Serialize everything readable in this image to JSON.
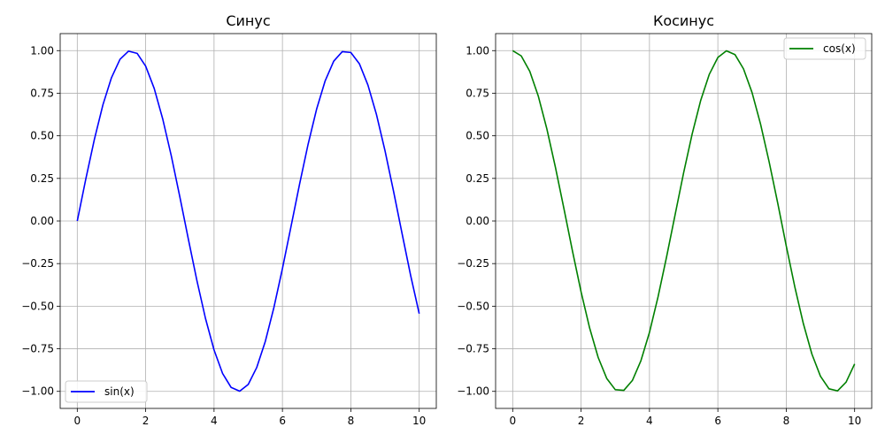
{
  "chart_data": [
    {
      "type": "line",
      "title": "Синус",
      "xlabel": "",
      "ylabel": "",
      "xlim": [
        -0.5,
        10.5
      ],
      "ylim": [
        -1.1,
        1.1
      ],
      "grid": true,
      "legend_position": "bottom-left",
      "xticks": [
        "0",
        "2",
        "4",
        "6",
        "8",
        "10"
      ],
      "yticks": [
        "1.00",
        "0.75",
        "0.50",
        "0.25",
        "0.00",
        "−0.25",
        "−0.50",
        "−0.75",
        "−1.00"
      ],
      "series": [
        {
          "name": "sin(x)",
          "color": "#0000ff",
          "x": [
            0,
            0.25,
            0.5,
            0.75,
            1,
            1.25,
            1.5,
            1.75,
            2,
            2.25,
            2.5,
            2.75,
            3,
            3.25,
            3.5,
            3.75,
            4,
            4.25,
            4.5,
            4.75,
            5,
            5.25,
            5.5,
            5.75,
            6,
            6.25,
            6.5,
            6.75,
            7,
            7.25,
            7.5,
            7.75,
            8,
            8.25,
            8.5,
            8.75,
            9,
            9.25,
            9.5,
            9.75,
            10
          ],
          "y": [
            0,
            0.247,
            0.479,
            0.682,
            0.841,
            0.949,
            0.997,
            0.984,
            0.909,
            0.778,
            0.598,
            0.382,
            0.141,
            -0.108,
            -0.351,
            -0.572,
            -0.757,
            -0.895,
            -0.977,
            -0.999,
            -0.959,
            -0.859,
            -0.706,
            -0.508,
            -0.279,
            -0.033,
            0.215,
            0.45,
            0.657,
            0.823,
            0.938,
            0.994,
            0.989,
            0.923,
            0.798,
            0.625,
            0.412,
            0.174,
            -0.075,
            -0.32,
            -0.544
          ]
        }
      ]
    },
    {
      "type": "line",
      "title": "Косинус",
      "xlabel": "",
      "ylabel": "",
      "xlim": [
        -0.5,
        10.5
      ],
      "ylim": [
        -1.1,
        1.1
      ],
      "grid": true,
      "legend_position": "top-right",
      "xticks": [
        "0",
        "2",
        "4",
        "6",
        "8",
        "10"
      ],
      "yticks": [
        "1.00",
        "0.75",
        "0.50",
        "0.25",
        "0.00",
        "−0.25",
        "−0.50",
        "−0.75",
        "−1.00"
      ],
      "series": [
        {
          "name": "cos(x)",
          "color": "#008000",
          "x": [
            0,
            0.25,
            0.5,
            0.75,
            1,
            1.25,
            1.5,
            1.75,
            2,
            2.25,
            2.5,
            2.75,
            3,
            3.25,
            3.5,
            3.75,
            4,
            4.25,
            4.5,
            4.75,
            5,
            5.25,
            5.5,
            5.75,
            6,
            6.25,
            6.5,
            6.75,
            7,
            7.25,
            7.5,
            7.75,
            8,
            8.25,
            8.5,
            8.75,
            9,
            9.25,
            9.5,
            9.75,
            10
          ],
          "y": [
            1,
            0.969,
            0.878,
            0.732,
            0.54,
            0.315,
            0.071,
            -0.178,
            -0.416,
            -0.628,
            -0.801,
            -0.924,
            -0.99,
            -0.994,
            -0.936,
            -0.82,
            -0.654,
            -0.446,
            -0.211,
            0.037,
            0.284,
            0.512,
            0.709,
            0.861,
            0.96,
            0.999,
            0.977,
            0.893,
            0.754,
            0.568,
            0.347,
            0.106,
            -0.146,
            -0.386,
            -0.602,
            -0.781,
            -0.911,
            -0.985,
            -0.997,
            -0.946,
            -0.839
          ]
        }
      ]
    }
  ]
}
